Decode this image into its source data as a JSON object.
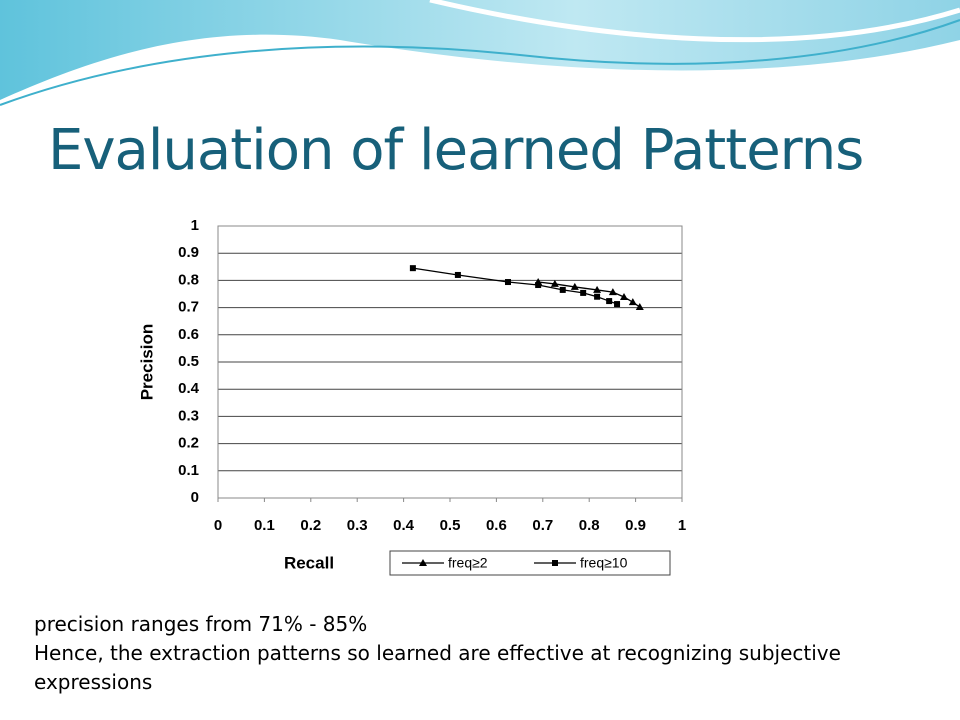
{
  "title": "Evaluation of learned Patterns",
  "bullets": [
    "precision ranges from 71% - 85%",
    "Hence, the extraction patterns so learned are effective at recognizing subjective expressions"
  ],
  "chart_data": {
    "type": "line",
    "xlabel": "Recall",
    "ylabel": "Precision",
    "xlim": [
      0,
      1
    ],
    "ylim": [
      0,
      1
    ],
    "xticks": [
      0,
      0.1,
      0.2,
      0.3,
      0.4,
      0.5,
      0.6,
      0.7,
      0.8,
      0.9,
      1
    ],
    "yticks": [
      0,
      0.1,
      0.2,
      0.3,
      0.4,
      0.5,
      0.6,
      0.7,
      0.8,
      0.9,
      1
    ],
    "grid": true,
    "legend": "bottom",
    "series": [
      {
        "name": "freq≥2",
        "color": "#000000",
        "marker": "triangle",
        "x": [
          0.69,
          0.726,
          0.769,
          0.817,
          0.851,
          0.875,
          0.894,
          0.909
        ],
        "values": [
          0.794,
          0.787,
          0.776,
          0.765,
          0.757,
          0.739,
          0.72,
          0.702
        ]
      },
      {
        "name": "freq≥10",
        "color": "#000000",
        "marker": "square",
        "x": [
          0.42,
          0.517,
          0.625,
          0.69,
          0.743,
          0.787,
          0.817,
          0.843,
          0.86
        ],
        "values": [
          0.845,
          0.82,
          0.794,
          0.783,
          0.765,
          0.754,
          0.74,
          0.724,
          0.713
        ]
      }
    ]
  }
}
